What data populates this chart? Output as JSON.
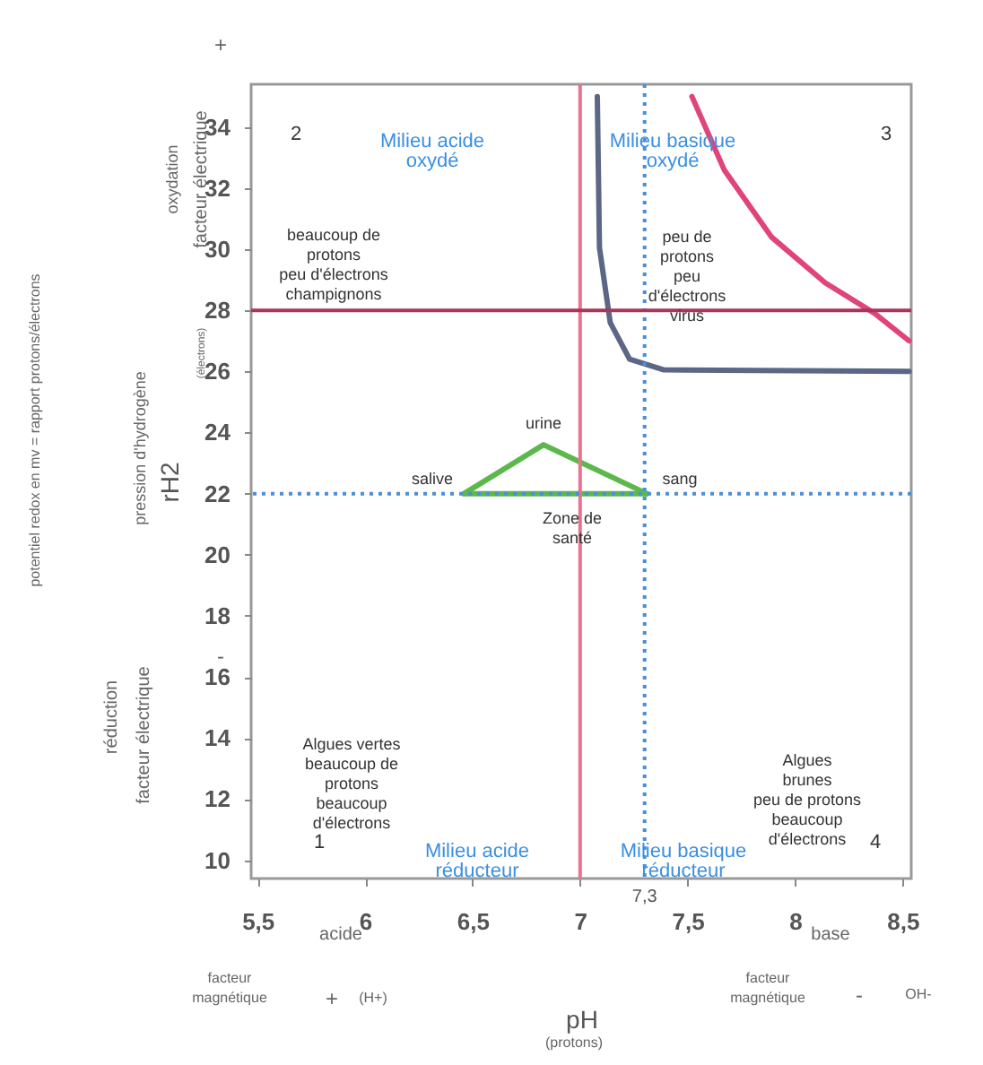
{
  "chart_data": {
    "type": "line",
    "xlabel": "pH",
    "ylabel": "rH2",
    "xlim": [
      5.47,
      8.54
    ],
    "ylim": [
      9.4,
      35.4
    ],
    "xticks": [
      {
        "value": 5.5,
        "label": "5,5"
      },
      6,
      {
        "value": 6.5,
        "label": "6,5"
      },
      7,
      {
        "value": 7.5,
        "label": "7,5"
      },
      8,
      {
        "value": 8.5,
        "label": "8,5"
      }
    ],
    "yticks": [
      10,
      12,
      14,
      16,
      18,
      20,
      22,
      24,
      26,
      28,
      30,
      32,
      34
    ],
    "grid": false,
    "marker": "none",
    "series": [
      {
        "color": "#5b6785",
        "x": [
          7.08,
          7.09,
          7.14,
          7.23,
          7.39,
          8.53
        ],
        "values": [
          35,
          30.05,
          27.6,
          26.4,
          26.05,
          26.0
        ]
      },
      {
        "color": "#e0457a",
        "x": [
          7.52,
          7.67,
          7.89,
          8.14,
          8.37,
          8.53
        ],
        "values": [
          35,
          32.6,
          30.4,
          28.9,
          27.9,
          27.0
        ]
      },
      {
        "color": "#5cb84a",
        "x": [
          6.46,
          6.83,
          7.31
        ],
        "values": [
          22,
          23.6,
          22
        ]
      },
      {
        "color": "#5cb84a",
        "x": [
          6.46,
          7.31
        ],
        "values": [
          22,
          22
        ]
      }
    ],
    "ref_lines": [
      {
        "axis": "x",
        "value": 7,
        "color": "#e9728f",
        "line_style": "solid"
      },
      {
        "axis": "x",
        "value": 7.3,
        "label": "7,3",
        "color": "#4a8fd8",
        "line_style": "dotted"
      },
      {
        "axis": "y",
        "value": 28,
        "color": "#a8365a",
        "line_style": "solid"
      },
      {
        "axis": "y",
        "value": 22,
        "color": "#4a8fd8",
        "line_style": "dotted"
      }
    ],
    "annotations": [
      "2",
      "Milieu acide\noxydé",
      "beaucoup de\nprotons\npeu d'électrons\nchampignons",
      "Milieu basique\noxydé",
      "3",
      "peu de\nprotons\npeu\nd'électrons\nvirus",
      "urine",
      "salive",
      "sang",
      "Zone de\nsanté",
      "Algues vertes\nbeaucoup de\nprotons\nbeaucoup\nd'électrons",
      "Algues\nbrunes\npeu de protons\nbeaucoup\nd'électrons",
      "1",
      "Milieu acide\nréducteur",
      "Milieu basique\nréducteur",
      "4",
      "+",
      "oxydation",
      "facteur électrique",
      "pression d'hydrogène",
      "(électrons)",
      "potentiel redox en mv = rapport protons/électrons",
      "-",
      "réduction",
      "facteur électrique",
      "acide",
      "base",
      "(protons)",
      "facteur\nmagnétique",
      "+",
      "(H+)",
      "facteur\nmagnétique",
      "-",
      "OH-"
    ]
  }
}
